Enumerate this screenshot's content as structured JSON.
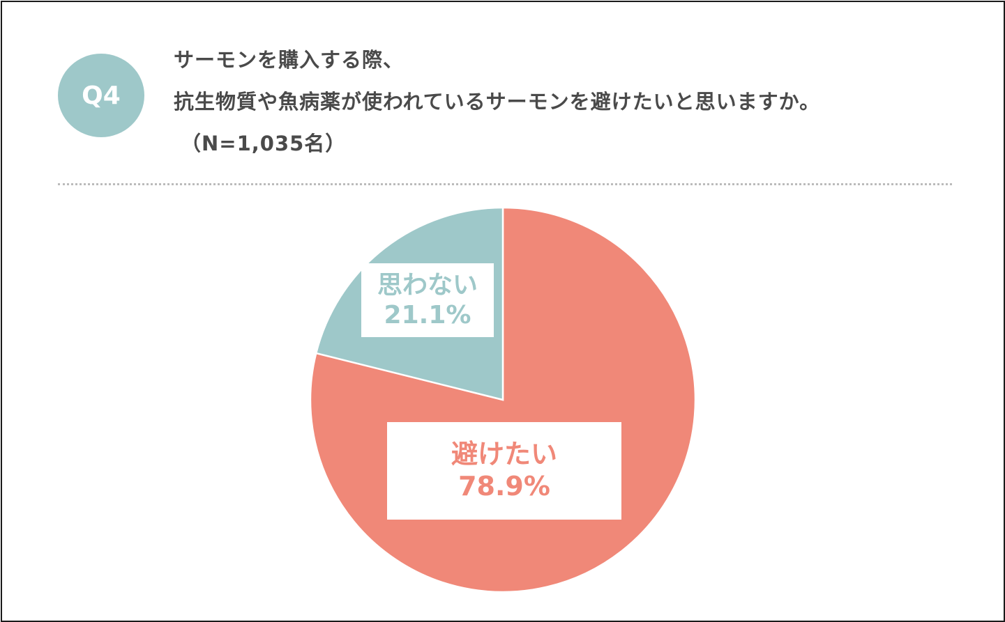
{
  "question": {
    "badge": "Q4",
    "line1": "サーモンを購入する際、",
    "line2": "抗生物質や魚病薬が使われているサーモンを避けたいと思いますか。",
    "line3": "（N=1,035名）"
  },
  "colors": {
    "accent": "#9ec8c9",
    "avoid": "#f08878",
    "not_think": "#9ec8c9",
    "question_text": "#4a4a4a",
    "divider": "#bbbbbb"
  },
  "chart_data": {
    "type": "pie",
    "start_angle_deg": 0,
    "direction": "clockwise",
    "slices": [
      {
        "label": "避けたい",
        "value": 78.9,
        "value_label": "78.9%",
        "color": "#f08878"
      },
      {
        "label": "思わない",
        "value": 21.1,
        "value_label": "21.1%",
        "color": "#9ec8c9"
      }
    ]
  }
}
